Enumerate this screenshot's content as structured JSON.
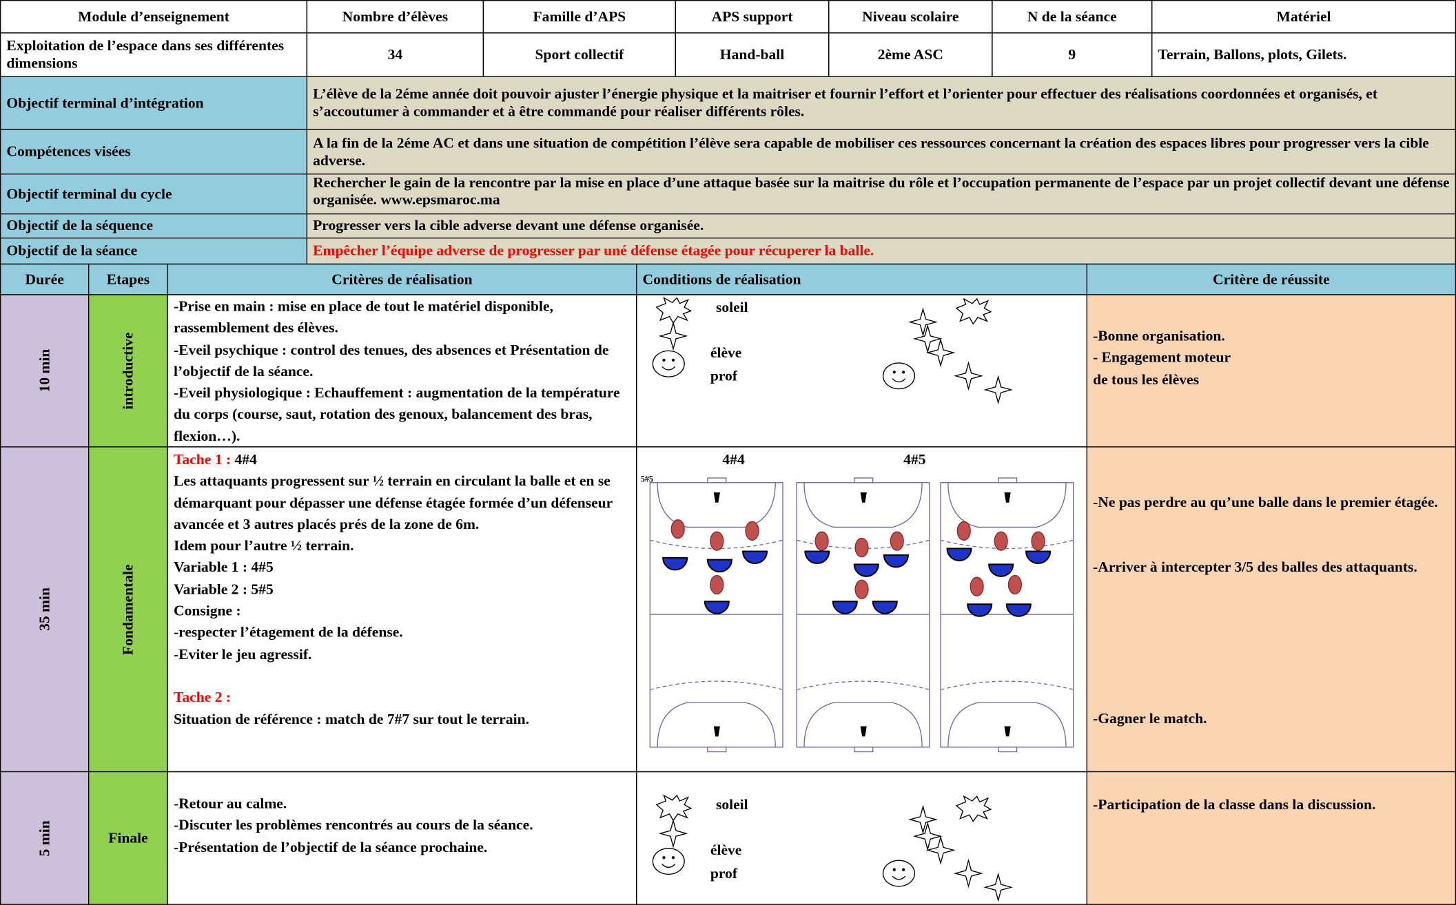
{
  "header_table": {
    "columns": [
      "Module d’enseignement",
      "Nombre d’élèves",
      "Famille d’APS",
      "APS support",
      "Niveau scolaire",
      "N de la séance",
      "Matériel"
    ],
    "values": [
      "Exploitation de l’espace dans ses différentes dimensions",
      "34",
      "Sport collectif",
      "Hand-ball",
      "2ème ASC",
      "9",
      "Terrain, Ballons, plots, Gilets."
    ]
  },
  "objectives": [
    {
      "label": "Objectif terminal d’intégration",
      "text": "L’élève de la 2éme année doit pouvoir ajuster l’énergie physique et la maitriser et fournir l’effort et l’orienter pour effectuer des réalisations coordonnées et organisés, et s’accoutumer à commander et à être commandé pour réaliser différents rôles."
    },
    {
      "label": "Compétences visées",
      "text": "A la fin de la 2éme AC et dans une situation de compétition l’élève sera capable de mobiliser ces ressources concernant la création des espaces libres pour progresser vers la cible adverse."
    },
    {
      "label": "Objectif terminal du cycle",
      "text": "Rechercher le gain de la rencontre par la mise en place d’une attaque basée sur la maitrise du rôle et l’occupation permanente de l’espace par un projet collectif devant une défense organisée. www.epsmaroc.ma"
    },
    {
      "label": "Objectif de la séquence",
      "text": "Progresser vers la cible adverse devant une défense organisée."
    },
    {
      "label": "Objectif de la séance",
      "text": "Empêcher l’équipe adverse de progresser par uné défense étagée pour récuperer la balle."
    }
  ],
  "session_table": {
    "columns": [
      "Durée",
      "Etapes",
      "Critères de réalisation",
      "Conditions de réalisation",
      "Critère de réussite"
    ],
    "phases": [
      {
        "duration": "10 min",
        "stage": "introductive",
        "criteria": [
          "-Prise en main : mise en place de tout le matériel disponible, rassemblement des élèves.",
          "-Eveil psychique : control des tenues, des absences et Présentation de l’objectif de la séance.",
          "-Eveil physiologique : Echauffement : augmentation de la température du corps (course, saut, rotation des genoux, balancement des bras, flexion…)."
        ],
        "conditions": [
          "soleil",
          "élève",
          "prof"
        ],
        "success": [
          "-Bonne organisation.",
          "- Engagement moteur",
          "de tous les élèves"
        ]
      },
      {
        "duration": "35  min",
        "stage": "Fondamentale",
        "criteria": {
          "task1": {
            "label": "Tache 1 :",
            "text": "4#4"
          },
          "lines": [
            "Les attaquants progressent sur ½ terrain en circulant la balle et en se démarquant pour dépasser une défense étagée formée d’un défenseur avancée et 3 autres placés prés de la zone de 6m.",
            "Idem pour l’autre ½ terrain.",
            "Variable 1 : 4#5",
            "Variable 2 : 5#5",
            "Consigne :",
            "-respecter l’étagement de la défense.",
            "-Eviter le jeu agressif."
          ],
          "task2": {
            "label": "Tache 2 :",
            "text": "Situation de référence : match de 7#7 sur tout le terrain."
          }
        },
        "conditions": [
          "4#4",
          "4#5",
          "5#5"
        ],
        "success": [
          "-Ne pas perdre au qu’une balle dans le premier étagée.",
          "-Arriver à intercepter 3/5 des balles des attaquants.",
          "-Gagner le match."
        ]
      },
      {
        "duration": "5 min",
        "stage": "Finale",
        "criteria": [
          "-Retour au calme.",
          "-Discuter les problèmes rencontrés au cours de la séance.",
          "-Présentation de l’objectif de la séance prochaine."
        ],
        "conditions": [
          "soleil",
          "élève",
          "prof"
        ],
        "success": [
          "-Participation de la classe dans la discussion."
        ]
      }
    ]
  }
}
